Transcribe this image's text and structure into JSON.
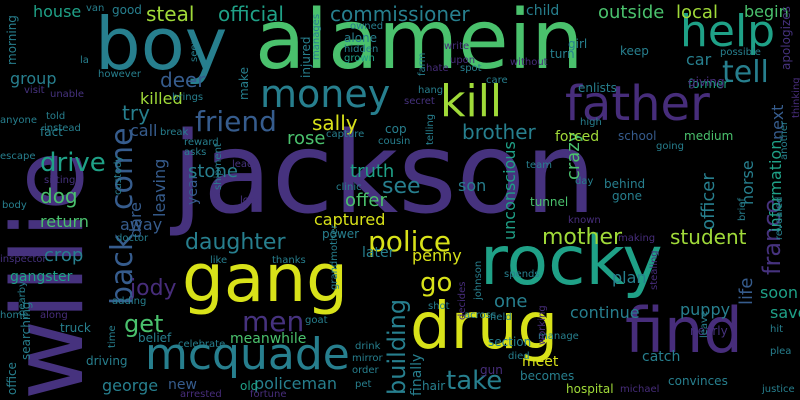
{
  "palette": {
    "background": "#000000",
    "dark_purple": "#46327e",
    "violet": "#472d7b",
    "blue": "#365c8d",
    "teal": "#277f8e",
    "green": "#1fa187",
    "light_green": "#4ac16d",
    "lime": "#a0da39",
    "yellow": "#d8e219"
  },
  "words": [
    "jackson",
    "willie",
    "alamein",
    "boy",
    "rocky",
    "gang",
    "drug",
    "find",
    "father",
    "kill",
    "mcquade",
    "help",
    "money",
    "police",
    "back",
    "come",
    "tell",
    "friend",
    "daughter",
    "men",
    "jody",
    "get",
    "take",
    "go",
    "france",
    "mother",
    "student",
    "building",
    "brother",
    "drive",
    "dog",
    "steal",
    "official",
    "commissioner",
    "outside",
    "local",
    "begin",
    "sally",
    "deer",
    "rose",
    "try",
    "killed",
    "call",
    "stone",
    "see",
    "truth",
    "offer",
    "captured",
    "crazy",
    "unconscious",
    "son",
    "horse",
    "officer",
    "information",
    "next",
    "life",
    "soon",
    "save",
    "puppy",
    "one",
    "continue",
    "plan",
    "penny",
    "later",
    "power",
    "meet",
    "hospital",
    "catch",
    "becomes",
    "meanwhile",
    "policeman",
    "george",
    "new",
    "old",
    "finally",
    "return",
    "crop",
    "group",
    "house",
    "gangster",
    "away",
    "dare",
    "year",
    "leaving",
    "forced",
    "school",
    "medium",
    "car",
    "former",
    "giving",
    "tunnel",
    "apologizes",
    "child",
    "owned",
    "alone",
    "cop",
    "hidden",
    "grown",
    "van",
    "good",
    "morning",
    "office",
    "arrested",
    "fortune",
    "pet",
    "order",
    "drink",
    "hair",
    "mirror",
    "justice",
    "convinces",
    "michael",
    "nearly",
    "hit",
    "plea",
    "leave",
    "escape",
    "fact",
    "body",
    "searching",
    "home",
    "along",
    "adding",
    "truck",
    "doctor",
    "like",
    "shipment",
    "thanks",
    "goat",
    "belief",
    "celebrate",
    "driving",
    "inspector",
    "sitting",
    "visit",
    "anyone",
    "told",
    "instead",
    "unable",
    "however",
    "brings",
    "break",
    "reward",
    "asks",
    "capture",
    "cousin",
    "telling",
    "secret",
    "farm",
    "injured",
    "manages",
    "seen",
    "make",
    "spot",
    "care",
    "without",
    "enlists",
    "keep",
    "possible",
    "high",
    "going",
    "look",
    "custody",
    "day",
    "clinic",
    "team",
    "known",
    "making",
    "behind",
    "gone",
    "brief",
    "revealed",
    "another",
    "thinking",
    "across",
    "spends",
    "section",
    "field",
    "johnson",
    "decides",
    "shot",
    "grandmother",
    "manage",
    "working",
    "died",
    "gun",
    "stealing",
    "turn",
    "girl",
    "time",
    "nearby",
    "la",
    "lead",
    "hang",
    "hate",
    "upon",
    "write"
  ]
}
